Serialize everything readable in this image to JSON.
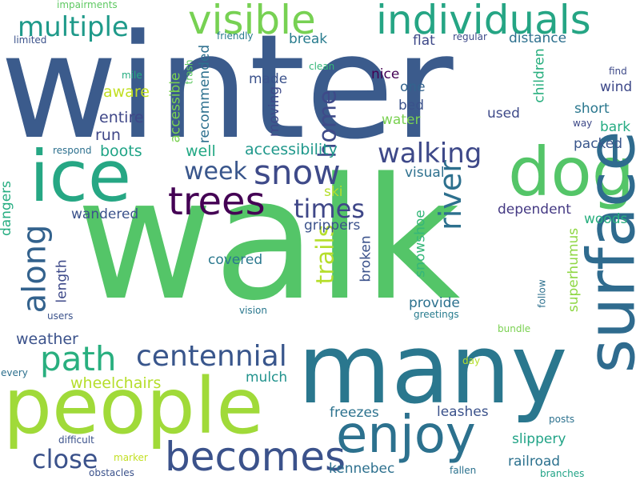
{
  "words": [
    {
      "text": "winter",
      "color": "#3b5b8c",
      "vertical": false
    },
    {
      "text": "walk",
      "color": "#54c568",
      "vertical": false
    },
    {
      "text": "many",
      "color": "#2a778e",
      "vertical": false
    },
    {
      "text": "people",
      "color": "#a0da39",
      "vertical": false
    },
    {
      "text": "dog",
      "color": "#54c568",
      "vertical": false
    },
    {
      "text": "ice",
      "color": "#26a784",
      "vertical": false
    },
    {
      "text": "individuals",
      "color": "#25a584",
      "vertical": false
    },
    {
      "text": "visible",
      "color": "#77d153",
      "vertical": false
    },
    {
      "text": "surface",
      "color": "#2f6b8e",
      "vertical": true
    },
    {
      "text": "enjoy",
      "color": "#2c718e",
      "vertical": false
    },
    {
      "text": "becomes",
      "color": "#3b528b",
      "vertical": false
    },
    {
      "text": "trees",
      "color": "#440154",
      "vertical": false
    },
    {
      "text": "snow",
      "color": "#3e4a89",
      "vertical": false
    },
    {
      "text": "path",
      "color": "#29af7f",
      "vertical": false
    },
    {
      "text": "centennial",
      "color": "#39568c",
      "vertical": false
    },
    {
      "text": "along",
      "color": "#33628d",
      "vertical": true
    },
    {
      "text": "river",
      "color": "#2d708e",
      "vertical": true
    },
    {
      "text": "walking",
      "color": "#3e4989",
      "vertical": false
    },
    {
      "text": "multiple",
      "color": "#1f9a8a",
      "vertical": false
    },
    {
      "text": "close",
      "color": "#3b528b",
      "vertical": false
    },
    {
      "text": "times",
      "color": "#3f4788",
      "vertical": false
    },
    {
      "text": "week",
      "color": "#39568c",
      "vertical": false
    },
    {
      "text": "home",
      "color": "#3e4a89",
      "vertical": true
    },
    {
      "text": "trails",
      "color": "#b5de2b",
      "vertical": true
    },
    {
      "text": "wheelchairs",
      "color": "#b5de2b",
      "vertical": false
    },
    {
      "text": "accessibility",
      "color": "#1f988b",
      "vertical": false
    },
    {
      "text": "weather",
      "color": "#3b528b",
      "vertical": false
    },
    {
      "text": "entire",
      "color": "#3f4788",
      "vertical": false
    },
    {
      "text": "aware",
      "color": "#c2df23",
      "vertical": false
    },
    {
      "text": "boots",
      "color": "#20a486",
      "vertical": false
    },
    {
      "text": "run",
      "color": "#3f4788",
      "vertical": false
    },
    {
      "text": "well",
      "color": "#22a884",
      "vertical": false
    },
    {
      "text": "made",
      "color": "#3b528b",
      "vertical": false
    },
    {
      "text": "nice",
      "color": "#440154",
      "vertical": false
    },
    {
      "text": "one",
      "color": "#33638d",
      "vertical": false
    },
    {
      "text": "bed",
      "color": "#3b528b",
      "vertical": false
    },
    {
      "text": "water",
      "color": "#7ad151",
      "vertical": false
    },
    {
      "text": "flat",
      "color": "#3e4989",
      "vertical": false
    },
    {
      "text": "break",
      "color": "#287c8e",
      "vertical": false
    },
    {
      "text": "distance",
      "color": "#2d708e",
      "vertical": false
    },
    {
      "text": "used",
      "color": "#3e4a89",
      "vertical": false
    },
    {
      "text": "short",
      "color": "#2a778e",
      "vertical": false
    },
    {
      "text": "bark",
      "color": "#25ab82",
      "vertical": false
    },
    {
      "text": "wind",
      "color": "#3e4989",
      "vertical": false
    },
    {
      "text": "packed",
      "color": "#39568c",
      "vertical": false
    },
    {
      "text": "children",
      "color": "#29af7f",
      "vertical": true
    },
    {
      "text": "recommended",
      "color": "#2d708e",
      "vertical": true
    },
    {
      "text": "accessible",
      "color": "#7ad151",
      "vertical": true
    },
    {
      "text": "moving",
      "color": "#3e4a89",
      "vertical": true
    },
    {
      "text": "dependent",
      "color": "#443983",
      "vertical": false
    },
    {
      "text": "woods",
      "color": "#29af7f",
      "vertical": false
    },
    {
      "text": "visual",
      "color": "#2d708e",
      "vertical": false
    },
    {
      "text": "ski",
      "color": "#b5de2b",
      "vertical": false
    },
    {
      "text": "snowshoe",
      "color": "#35b779",
      "vertical": true
    },
    {
      "text": "grippers",
      "color": "#3b528b",
      "vertical": false
    },
    {
      "text": "wandered",
      "color": "#3b528b",
      "vertical": false
    },
    {
      "text": "dangers",
      "color": "#26ad81",
      "vertical": true
    },
    {
      "text": "length",
      "color": "#3e4a89",
      "vertical": true
    },
    {
      "text": "covered",
      "color": "#2a788e",
      "vertical": false
    },
    {
      "text": "broken",
      "color": "#3b528b",
      "vertical": true
    },
    {
      "text": "superhumus",
      "color": "#8fd744",
      "vertical": true
    },
    {
      "text": "provide",
      "color": "#2c718e",
      "vertical": false
    },
    {
      "text": "mulch",
      "color": "#20928c",
      "vertical": false
    },
    {
      "text": "freezes",
      "color": "#2c728e",
      "vertical": false
    },
    {
      "text": "leashes",
      "color": "#3b528b",
      "vertical": false
    },
    {
      "text": "slippery",
      "color": "#20a386",
      "vertical": false
    },
    {
      "text": "railroad",
      "color": "#2c718e",
      "vertical": false
    },
    {
      "text": "kennebec",
      "color": "#2d708e",
      "vertical": false
    },
    {
      "text": "impairments",
      "color": "#5ec962",
      "vertical": false
    },
    {
      "text": "limited",
      "color": "#3b528b",
      "vertical": false
    },
    {
      "text": "friendly",
      "color": "#287c8e",
      "vertical": false
    },
    {
      "text": "regular",
      "color": "#3e4a89",
      "vertical": false
    },
    {
      "text": "find",
      "color": "#3e4a89",
      "vertical": false
    },
    {
      "text": "mile",
      "color": "#26ad81",
      "vertical": false
    },
    {
      "text": "trash",
      "color": "#5ec962",
      "vertical": true
    },
    {
      "text": "clean",
      "color": "#35b779",
      "vertical": false
    },
    {
      "text": "way",
      "color": "#3e4a89",
      "vertical": false
    },
    {
      "text": "respond",
      "color": "#2d708e",
      "vertical": false
    },
    {
      "text": "walkers",
      "color": "#3e4a89",
      "vertical": true
    },
    {
      "text": "users",
      "color": "#3b528b",
      "vertical": false
    },
    {
      "text": "vision",
      "color": "#2a788e",
      "vertical": false
    },
    {
      "text": "greetings",
      "color": "#287c8e",
      "vertical": false
    },
    {
      "text": "bundle",
      "color": "#7ad151",
      "vertical": false
    },
    {
      "text": "follow",
      "color": "#2d708e",
      "vertical": true
    },
    {
      "text": "day",
      "color": "#b5de2b",
      "vertical": false
    },
    {
      "text": "every",
      "color": "#2d708e",
      "vertical": false
    },
    {
      "text": "difficult",
      "color": "#3b528b",
      "vertical": false
    },
    {
      "text": "marker",
      "color": "#c2df23",
      "vertical": false
    },
    {
      "text": "obstacles",
      "color": "#3b528b",
      "vertical": false
    },
    {
      "text": "fallen",
      "color": "#2c728e",
      "vertical": false
    },
    {
      "text": "posts",
      "color": "#2c718e",
      "vertical": false
    },
    {
      "text": "branches",
      "color": "#20a386",
      "vertical": false
    }
  ]
}
